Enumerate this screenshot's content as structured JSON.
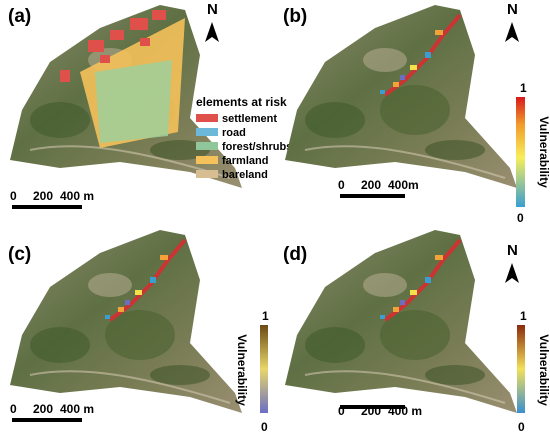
{
  "panels": [
    {
      "label": "(a)",
      "north": "N",
      "scale": [
        "0",
        "200",
        "400 m"
      ],
      "legend": {
        "title": "elements at risk",
        "items": [
          "settlement",
          "road",
          "forest/shrubs",
          "farmland",
          "bareland"
        ]
      }
    },
    {
      "label": "(b)",
      "north": "N",
      "scale": [
        "0",
        "200",
        "400m"
      ],
      "colorbar": {
        "title": "Vulnerability",
        "max": "1",
        "min": "0"
      }
    },
    {
      "label": "(c)",
      "scale": [
        "0",
        "200",
        "400 m"
      ],
      "colorbar": {
        "title": "Vulnerability",
        "max": "1",
        "min": "0"
      }
    },
    {
      "label": "(d)",
      "north": "N",
      "scale": [
        "0",
        "200",
        "400 m"
      ],
      "colorbar": {
        "title": "Vulnerability",
        "max": "1",
        "min": "0"
      }
    }
  ]
}
